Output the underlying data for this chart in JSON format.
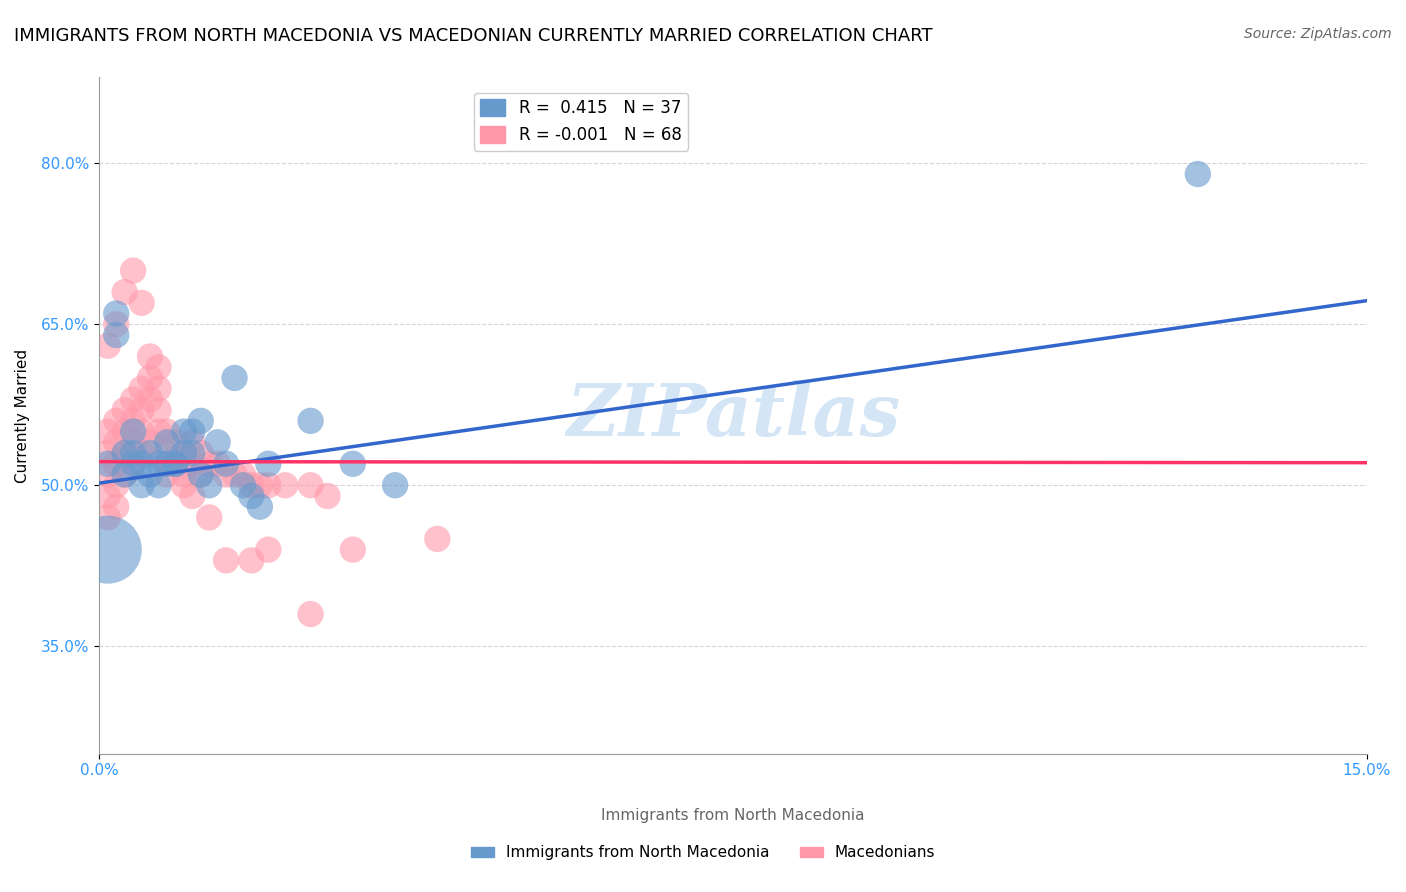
{
  "title": "IMMIGRANTS FROM NORTH MACEDONIA VS MACEDONIAN CURRENTLY MARRIED CORRELATION CHART",
  "source": "Source: ZipAtlas.com",
  "xlabel": "",
  "ylabel": "Currently Married",
  "xlim": [
    0.0,
    0.15
  ],
  "ylim": [
    0.25,
    0.88
  ],
  "yticks": [
    0.35,
    0.5,
    0.65,
    0.8
  ],
  "ytick_labels": [
    "35.0%",
    "50.0%",
    "65.0%",
    "80.0%"
  ],
  "xticks": [
    0.0,
    0.15
  ],
  "xtick_labels": [
    "0.0%",
    "15.0%"
  ],
  "blue_R": 0.415,
  "blue_N": 37,
  "pink_R": -0.001,
  "pink_N": 68,
  "blue_color": "#6699cc",
  "pink_color": "#ff99aa",
  "blue_line_color": "#3366cc",
  "pink_line_color": "#ff3366",
  "legend_blue_label": "Immigrants from North Macedonia",
  "legend_pink_label": "Macedonians",
  "watermark": "ZIPatlas",
  "watermark_color": "#aaccee",
  "blue_scatter_x": [
    0.001,
    0.002,
    0.002,
    0.003,
    0.003,
    0.004,
    0.004,
    0.004,
    0.005,
    0.005,
    0.006,
    0.006,
    0.007,
    0.007,
    0.008,
    0.008,
    0.009,
    0.009,
    0.01,
    0.01,
    0.011,
    0.011,
    0.012,
    0.012,
    0.013,
    0.014,
    0.015,
    0.016,
    0.017,
    0.018,
    0.019,
    0.02,
    0.025,
    0.03,
    0.035,
    0.13,
    0.001
  ],
  "blue_scatter_y": [
    0.52,
    0.64,
    0.66,
    0.51,
    0.53,
    0.52,
    0.55,
    0.53,
    0.5,
    0.52,
    0.51,
    0.53,
    0.52,
    0.5,
    0.54,
    0.52,
    0.52,
    0.52,
    0.53,
    0.55,
    0.55,
    0.53,
    0.51,
    0.56,
    0.5,
    0.54,
    0.52,
    0.6,
    0.5,
    0.49,
    0.48,
    0.52,
    0.56,
    0.52,
    0.5,
    0.79,
    0.44
  ],
  "blue_scatter_size": [
    30,
    30,
    30,
    30,
    30,
    30,
    30,
    30,
    30,
    30,
    30,
    30,
    30,
    30,
    30,
    30,
    30,
    30,
    30,
    30,
    30,
    30,
    30,
    30,
    30,
    30,
    30,
    30,
    30,
    30,
    30,
    30,
    30,
    30,
    30,
    30,
    200
  ],
  "pink_scatter_x": [
    0.001,
    0.001,
    0.001,
    0.001,
    0.001,
    0.002,
    0.002,
    0.002,
    0.002,
    0.002,
    0.003,
    0.003,
    0.003,
    0.003,
    0.004,
    0.004,
    0.004,
    0.004,
    0.005,
    0.005,
    0.005,
    0.005,
    0.006,
    0.006,
    0.006,
    0.007,
    0.007,
    0.007,
    0.008,
    0.008,
    0.008,
    0.009,
    0.009,
    0.01,
    0.01,
    0.011,
    0.011,
    0.012,
    0.012,
    0.013,
    0.014,
    0.015,
    0.016,
    0.017,
    0.018,
    0.019,
    0.02,
    0.022,
    0.025,
    0.027,
    0.001,
    0.002,
    0.003,
    0.004,
    0.005,
    0.006,
    0.007,
    0.008,
    0.009,
    0.01,
    0.011,
    0.013,
    0.015,
    0.018,
    0.02,
    0.025,
    0.03,
    0.04
  ],
  "pink_scatter_y": [
    0.55,
    0.53,
    0.51,
    0.49,
    0.47,
    0.56,
    0.54,
    0.52,
    0.5,
    0.48,
    0.57,
    0.55,
    0.53,
    0.51,
    0.58,
    0.56,
    0.54,
    0.52,
    0.59,
    0.57,
    0.55,
    0.53,
    0.6,
    0.58,
    0.54,
    0.61,
    0.59,
    0.55,
    0.55,
    0.53,
    0.51,
    0.54,
    0.52,
    0.53,
    0.51,
    0.54,
    0.52,
    0.53,
    0.51,
    0.52,
    0.52,
    0.51,
    0.51,
    0.51,
    0.5,
    0.5,
    0.5,
    0.5,
    0.5,
    0.49,
    0.63,
    0.65,
    0.68,
    0.7,
    0.67,
    0.62,
    0.57,
    0.52,
    0.52,
    0.5,
    0.49,
    0.47,
    0.43,
    0.43,
    0.44,
    0.38,
    0.44,
    0.45
  ],
  "pink_scatter_size": [
    30,
    30,
    30,
    30,
    30,
    30,
    30,
    30,
    30,
    30,
    30,
    30,
    30,
    30,
    30,
    30,
    30,
    30,
    30,
    30,
    30,
    30,
    30,
    30,
    30,
    30,
    30,
    30,
    30,
    30,
    30,
    30,
    30,
    30,
    30,
    30,
    30,
    30,
    30,
    30,
    30,
    30,
    30,
    30,
    30,
    30,
    30,
    30,
    30,
    30,
    30,
    30,
    30,
    30,
    30,
    30,
    30,
    30,
    30,
    30,
    30,
    30,
    30,
    30,
    30,
    30,
    30,
    30
  ],
  "blue_line_x": [
    0.0,
    0.15
  ],
  "blue_line_y": [
    0.502,
    0.672
  ],
  "pink_line_x": [
    0.0,
    0.15
  ],
  "pink_line_y": [
    0.522,
    0.521
  ],
  "grid_color": "#cccccc",
  "background_color": "#ffffff",
  "title_fontsize": 13,
  "axis_label_fontsize": 11,
  "tick_fontsize": 11,
  "legend_fontsize": 12
}
